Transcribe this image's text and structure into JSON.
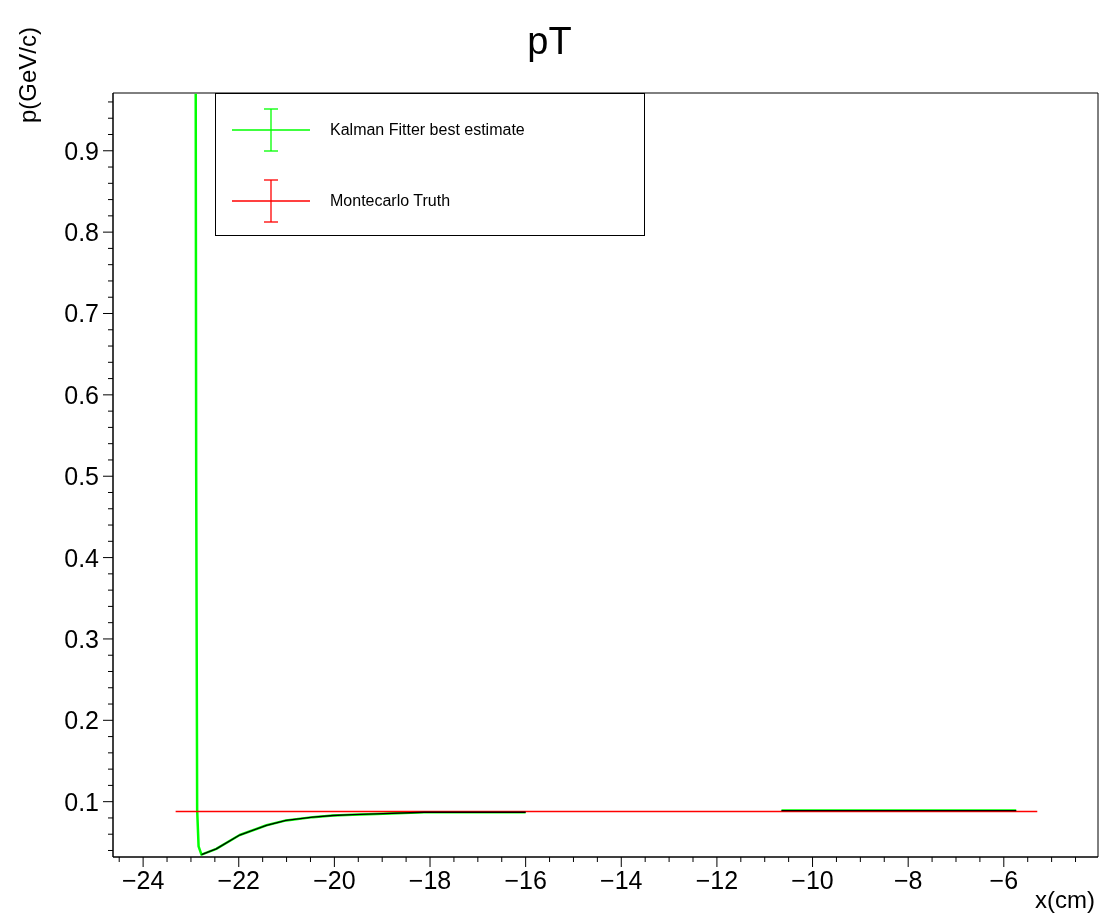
{
  "chart_data": {
    "type": "line",
    "title": "pT",
    "xlabel": "x(cm)",
    "ylabel": "p(GeV/c)",
    "xlim": [
      -24.63,
      -4.03
    ],
    "ylim": [
      0.032,
      0.971
    ],
    "xticks": [
      {
        "value": -24.5,
        "label": null
      },
      {
        "value": -24,
        "label": "−24"
      },
      {
        "value": -23.5,
        "label": null
      },
      {
        "value": -23,
        "label": null
      },
      {
        "value": -22.5,
        "label": null
      },
      {
        "value": -22,
        "label": "−22"
      },
      {
        "value": -21.5,
        "label": null
      },
      {
        "value": -21,
        "label": null
      },
      {
        "value": -20.5,
        "label": null
      },
      {
        "value": -20,
        "label": "−20"
      },
      {
        "value": -19.5,
        "label": null
      },
      {
        "value": -19,
        "label": null
      },
      {
        "value": -18.5,
        "label": null
      },
      {
        "value": -18,
        "label": "−18"
      },
      {
        "value": -17.5,
        "label": null
      },
      {
        "value": -17,
        "label": null
      },
      {
        "value": -16.5,
        "label": null
      },
      {
        "value": -16,
        "label": "−16"
      },
      {
        "value": -15.5,
        "label": null
      },
      {
        "value": -15,
        "label": null
      },
      {
        "value": -14.5,
        "label": null
      },
      {
        "value": -14,
        "label": "−14"
      },
      {
        "value": -13.5,
        "label": null
      },
      {
        "value": -13,
        "label": null
      },
      {
        "value": -12.5,
        "label": null
      },
      {
        "value": -12,
        "label": "−12"
      },
      {
        "value": -11.5,
        "label": null
      },
      {
        "value": -11,
        "label": null
      },
      {
        "value": -10.5,
        "label": null
      },
      {
        "value": -10,
        "label": "−10"
      },
      {
        "value": -9.5,
        "label": null
      },
      {
        "value": -9,
        "label": null
      },
      {
        "value": -8.5,
        "label": null
      },
      {
        "value": -8,
        "label": "−8"
      },
      {
        "value": -7.5,
        "label": null
      },
      {
        "value": -7,
        "label": null
      },
      {
        "value": -6.5,
        "label": null
      },
      {
        "value": -6,
        "label": "−6"
      },
      {
        "value": -5.5,
        "label": null
      },
      {
        "value": -5,
        "label": null
      },
      {
        "value": -4.5,
        "label": null
      }
    ],
    "yticks": [
      {
        "value": 0.04,
        "label": null
      },
      {
        "value": 0.06,
        "label": null
      },
      {
        "value": 0.08,
        "label": null
      },
      0.1,
      {
        "value": 0.12,
        "label": null
      },
      {
        "value": 0.14,
        "label": null
      },
      {
        "value": 0.16,
        "label": null
      },
      {
        "value": 0.18,
        "label": null
      },
      0.2,
      {
        "value": 0.22,
        "label": null
      },
      {
        "value": 0.24,
        "label": null
      },
      {
        "value": 0.26,
        "label": null
      },
      {
        "value": 0.28,
        "label": null
      },
      0.3,
      {
        "value": 0.32,
        "label": null
      },
      {
        "value": 0.34,
        "label": null
      },
      {
        "value": 0.36,
        "label": null
      },
      {
        "value": 0.38,
        "label": null
      },
      0.4,
      {
        "value": 0.42,
        "label": null
      },
      {
        "value": 0.44,
        "label": null
      },
      {
        "value": 0.46,
        "label": null
      },
      {
        "value": 0.48,
        "label": null
      },
      0.5,
      {
        "value": 0.52,
        "label": null
      },
      {
        "value": 0.54,
        "label": null
      },
      {
        "value": 0.56,
        "label": null
      },
      {
        "value": 0.58,
        "label": null
      },
      0.6,
      {
        "value": 0.62,
        "label": null
      },
      {
        "value": 0.64,
        "label": null
      },
      {
        "value": 0.66,
        "label": null
      },
      {
        "value": 0.68,
        "label": null
      },
      0.7,
      {
        "value": 0.72,
        "label": null
      },
      {
        "value": 0.74,
        "label": null
      },
      {
        "value": 0.76,
        "label": null
      },
      {
        "value": 0.78,
        "label": null
      },
      0.8,
      {
        "value": 0.82,
        "label": null
      },
      {
        "value": 0.84,
        "label": null
      },
      {
        "value": 0.86,
        "label": null
      },
      {
        "value": 0.88,
        "label": null
      },
      0.9,
      {
        "value": 0.92,
        "label": null
      },
      {
        "value": 0.94,
        "label": null
      },
      {
        "value": 0.96,
        "label": null
      }
    ],
    "legend": "top left",
    "marker": "none",
    "line_style": "solid",
    "series": [
      {
        "name": "Kalman Fitter best estimate",
        "color": "#00ff00",
        "x": [
          -22.9,
          -22.89,
          -22.87,
          -22.84,
          -22.78,
          -22.47,
          -21.98,
          -21.42,
          -21.01,
          -20.45,
          -20.03,
          -19.62,
          -19.13,
          -18.12,
          -16.0,
          -13.0,
          -10.65,
          -5.74
        ],
        "values": [
          0.97,
          0.5,
          0.09,
          0.045,
          0.035,
          0.042,
          0.059,
          0.071,
          0.077,
          0.081,
          0.083,
          0.084,
          0.085,
          0.087,
          0.087,
          null,
          0.089,
          0.089
        ]
      },
      {
        "name": "Montecarlo Truth",
        "color": "#ff0000",
        "x": [
          -23.32,
          -5.3
        ],
        "values": [
          0.088,
          0.088
        ]
      },
      {
        "color": "#000000",
        "line_style": "solid",
        "x": [
          -22.78,
          -22.47,
          -21.98,
          -21.42,
          -21.01,
          -20.45,
          -20.03,
          -19.62,
          -19.13,
          -18.12,
          -16.0,
          -13.0,
          -10.65,
          -5.74
        ],
        "values": [
          0.035,
          0.042,
          0.059,
          0.071,
          0.077,
          0.081,
          0.083,
          0.084,
          0.085,
          0.087,
          0.087,
          null,
          0.089,
          0.089
        ]
      }
    ]
  }
}
